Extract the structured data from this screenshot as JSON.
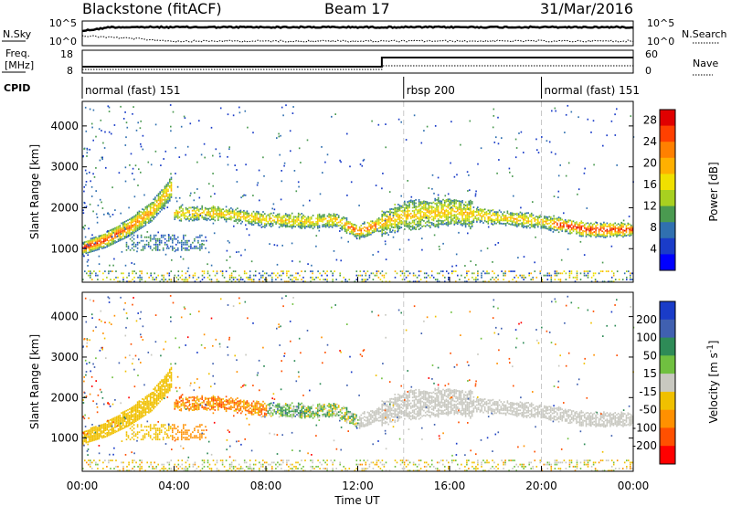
{
  "header": {
    "title": "Blackstone (fitACF)",
    "beam": "Beam 17",
    "date": "31/Mar/2016"
  },
  "noise_panel": {
    "left_label": "N.Sky",
    "right_label": "N.Search",
    "left_ticks": [
      "10^5",
      "10^0"
    ],
    "right_ticks": [
      "10^5",
      "10^0"
    ]
  },
  "freq_panel": {
    "left_label_line1": "Freq.",
    "left_label_line2": "[MHz]",
    "right_label": "Nave",
    "left_ticks": [
      "18",
      "8"
    ],
    "right_ticks": [
      "60",
      "0"
    ]
  },
  "cpid_panel": {
    "label": "CPID",
    "segments": [
      {
        "name": "normal (fast) 151",
        "start_hour": 0,
        "end_hour": 14
      },
      {
        "name": "rbsp 200",
        "start_hour": 14,
        "end_hour": 20
      },
      {
        "name": "normal (fast) 151",
        "start_hour": 20,
        "end_hour": 24
      }
    ]
  },
  "power_panel": {
    "ylabel": "Slant Range [km]",
    "colorbar_label": "Power [dB]",
    "colorbar_ticks": [
      "28",
      "24",
      "20",
      "16",
      "12",
      "8",
      "4"
    ],
    "colorbar_colors": [
      "#e00000",
      "#ff4000",
      "#ff8000",
      "#ffb000",
      "#f0e000",
      "#a8d020",
      "#4a9a50",
      "#3070b0",
      "#1a3cc8",
      "#0000ff"
    ]
  },
  "velocity_panel": {
    "ylabel": "Slant Range [km]",
    "colorbar_label": "Velocity [m s^-1]",
    "colorbar_ticks": [
      "200",
      "100",
      "50",
      "15",
      "-15",
      "-50",
      "-100",
      "-200"
    ],
    "colorbar_colors": [
      "#1a3cc8",
      "#4060b0",
      "#2e8b57",
      "#70c040",
      "#c8c8c0",
      "#f0c000",
      "#ff9000",
      "#ff5000",
      "#ff0000"
    ]
  },
  "x_axis": {
    "label": "Time UT",
    "ticks": [
      "00:00",
      "04:00",
      "08:00",
      "12:00",
      "16:00",
      "20:00",
      "00:00"
    ]
  },
  "y_axis": {
    "ticks": [
      "4000",
      "3000",
      "2000",
      "1000"
    ]
  },
  "chart_data": [
    {
      "type": "heatmap",
      "title": "Power",
      "xlabel": "Time UT",
      "ylabel": "Slant Range [km]",
      "xlim": [
        0,
        24
      ],
      "ylim": [
        180,
        4600
      ],
      "zlim": [
        0,
        30
      ],
      "zlabel": "Power [dB]",
      "features": [
        {
          "name": "rising near-range echo band",
          "x": [
            0,
            1,
            2,
            3,
            3.9
          ],
          "y": [
            1000,
            1200,
            1500,
            1900,
            2500
          ],
          "z": 24
        },
        {
          "name": "main echo band",
          "x": [
            4,
            6,
            8,
            10,
            11,
            12,
            14,
            16,
            18,
            20,
            22,
            24
          ],
          "y": [
            1850,
            1850,
            1700,
            1650,
            1700,
            1400,
            1800,
            1900,
            1750,
            1650,
            1450,
            1450
          ],
          "z": 12
        },
        {
          "name": "low range patch",
          "x": [
            2,
            3,
            4,
            5
          ],
          "y": [
            1100,
            1150,
            1150,
            1100
          ],
          "z": 8
        }
      ]
    },
    {
      "type": "heatmap",
      "title": "Velocity",
      "xlabel": "Time UT",
      "ylabel": "Slant Range [km]",
      "xlim": [
        0,
        24
      ],
      "ylim": [
        180,
        4600
      ],
      "zlim": [
        -200,
        200
      ],
      "zlabel": "Velocity [m s^-1]",
      "features": [
        {
          "name": "rising near-range band",
          "x": [
            0,
            1,
            2,
            3,
            3.9
          ],
          "y": [
            1000,
            1200,
            1500,
            1900,
            2500
          ],
          "z": -15
        },
        {
          "name": "strong negative flow",
          "x": [
            4,
            5,
            6,
            7,
            8,
            9
          ],
          "y": [
            1850,
            1850,
            1800,
            1750,
            1700,
            1700
          ],
          "z": -150
        },
        {
          "name": "low range patch",
          "x": [
            4,
            4.5,
            5,
            5.5
          ],
          "y": [
            1100,
            1200,
            1200,
            1100
          ],
          "z": -60
        },
        {
          "name": "near zero flow",
          "x": [
            12,
            14,
            16,
            18,
            20,
            22,
            24
          ],
          "y": [
            1500,
            1800,
            1900,
            1750,
            1650,
            1450,
            1450
          ],
          "z": 0
        }
      ]
    }
  ]
}
